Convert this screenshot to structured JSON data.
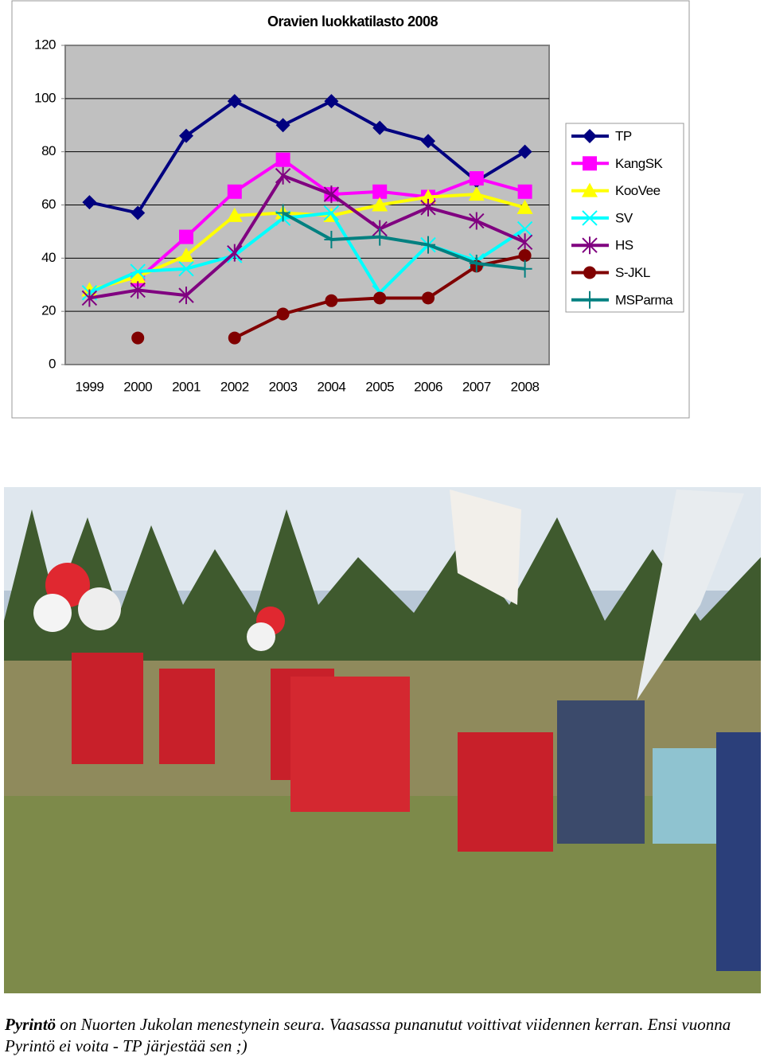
{
  "chart_data": {
    "type": "line",
    "title": "Oravien luokkatilasto 2008",
    "categories": [
      "1999",
      "2000",
      "2001",
      "2002",
      "2003",
      "2004",
      "2005",
      "2006",
      "2007",
      "2008"
    ],
    "ylim": [
      0,
      120
    ],
    "yticks": [
      0,
      20,
      40,
      60,
      80,
      100,
      120
    ],
    "grid": true,
    "legend": "right",
    "series": [
      {
        "name": "TP",
        "color": "#000080",
        "marker": "diamond",
        "values": [
          61,
          57,
          86,
          99,
          90,
          99,
          89,
          84,
          69,
          80
        ]
      },
      {
        "name": "KangSK",
        "color": "#ff00ff",
        "marker": "square",
        "values": [
          null,
          32,
          48,
          65,
          77,
          64,
          65,
          63,
          70,
          65
        ]
      },
      {
        "name": "KooVee",
        "color": "#ffff00",
        "marker": "triangle",
        "values": [
          28,
          33,
          41,
          56,
          57,
          56,
          60,
          63,
          64,
          59
        ]
      },
      {
        "name": "SV",
        "color": "#00ffff",
        "marker": "x",
        "values": [
          27,
          35,
          36,
          41,
          55,
          57,
          27,
          45,
          39,
          51
        ]
      },
      {
        "name": "HS",
        "color": "#800080",
        "marker": "star",
        "values": [
          25,
          28,
          26,
          42,
          71,
          64,
          51,
          59,
          54,
          46
        ]
      },
      {
        "name": "S-JKL",
        "color": "#800000",
        "marker": "circle",
        "values": [
          null,
          10,
          null,
          10,
          19,
          24,
          25,
          25,
          37,
          41
        ]
      },
      {
        "name": "MSParma",
        "color": "#008080",
        "marker": "plus",
        "values": [
          null,
          null,
          null,
          null,
          57,
          47,
          48,
          45,
          38,
          36
        ]
      }
    ]
  },
  "caption": {
    "lead": "Pyrintö",
    "text": "on Nuorten Jukolan menestynein seura. Vaasassa punanutut voittivat viidennen kerran. Ensi vuonna Pyrintö ei voita - TP järjestää sen ;)"
  }
}
